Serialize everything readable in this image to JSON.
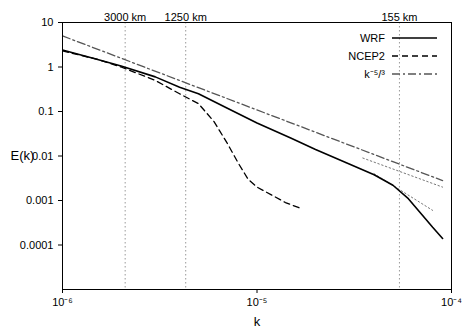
{
  "chart_data": {
    "type": "line",
    "log": true,
    "grid": false,
    "legend": "top-right",
    "x_label": "k",
    "y_label": "E(k)",
    "xlim": [
      1e-06,
      0.0001
    ],
    "ylim": [
      1e-05,
      10
    ],
    "xticks": [
      {
        "value": 1e-06,
        "label": "10⁻⁶"
      },
      {
        "value": 1e-05,
        "label": "10⁻⁵"
      },
      {
        "value": 0.0001,
        "label": "10⁻⁴"
      }
    ],
    "yticks": [
      10,
      1,
      0.1,
      0.01,
      0.001,
      0.0001
    ],
    "series": [
      {
        "name": "WRF",
        "color": "#000000",
        "line_style": "solid",
        "x": [
          1e-06,
          1.5e-06,
          2e-06,
          3e-06,
          4e-06,
          5e-06,
          7e-06,
          1e-05,
          1.5e-05,
          2e-05,
          3e-05,
          4e-05,
          5e-05,
          6e-05,
          7e-05,
          8e-05,
          9e-05
        ],
        "values": [
          2.4,
          1.5,
          1.05,
          0.6,
          0.35,
          0.25,
          0.12,
          0.055,
          0.025,
          0.014,
          0.0065,
          0.0038,
          0.0022,
          0.0011,
          0.0005,
          0.00025,
          0.00014
        ]
      },
      {
        "name": "NCEP2",
        "color": "#000000",
        "line_style": "dashed",
        "x": [
          1e-06,
          1.5e-06,
          2e-06,
          3e-06,
          4e-06,
          5e-06,
          6e-06,
          7e-06,
          8e-06,
          9e-06,
          1e-05,
          1.2e-05,
          1.4e-05,
          1.7e-05
        ],
        "values": [
          2.3,
          1.5,
          1.0,
          0.5,
          0.25,
          0.15,
          0.06,
          0.02,
          0.007,
          0.003,
          0.002,
          0.0013,
          0.0009,
          0.00065
        ]
      },
      {
        "name": "k⁻⁵/³",
        "color": "#555555",
        "line_style": "dashdot",
        "x": [
          1e-06,
          9e-05
        ],
        "values": [
          5,
          0.0028
        ]
      }
    ],
    "guide_lines": [
      {
        "color": "#777777",
        "line_style": "dotted",
        "x": [
          3.5e-05,
          9e-05
        ],
        "values": [
          0.009,
          0.002
        ]
      },
      {
        "color": "#777777",
        "line_style": "dotted",
        "x": [
          4e-05,
          8e-05
        ],
        "values": [
          0.004,
          0.0006
        ]
      }
    ],
    "markers": [
      {
        "value": 2.1e-06,
        "label": "3000 km"
      },
      {
        "value": 4.3e-06,
        "label": "1250 km"
      },
      {
        "value": 5.4e-05,
        "label": "155 km"
      }
    ]
  }
}
